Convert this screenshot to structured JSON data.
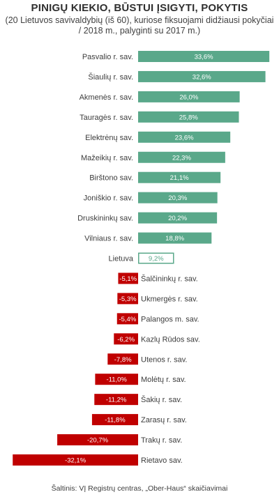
{
  "header": {
    "title": "PINIGŲ KIEKIO, BŪSTUI ĮSIGYTI, POKYTIS",
    "subtitle_line1": "(20 Lietuvos savivaldybių (iš 60), kuriose fiksuojami didžiausi pokyčiai",
    "subtitle_line2": "/ 2018 m., palyginti su 2017 m.)"
  },
  "footer": {
    "source": "Šaltinis: VĮ Registrų centras, „Ober-Haus“ skaičiavimai"
  },
  "chart_data": {
    "type": "bar",
    "orientation": "horizontal",
    "unit": "%",
    "colors": {
      "positive": "#5aa88a",
      "average": "#5aa88a",
      "negative": "#c00000"
    },
    "categories": [
      "Pasvalio r. sav.",
      "Šiaulių r. sav.",
      "Akmenės r. sav.",
      "Tauragės r. sav.",
      "Elektrėnų sav.",
      "Mažeikių r. sav.",
      "Birštono sav.",
      "Joniškio r. sav.",
      "Druskininkų sav.",
      "Vilniaus r. sav.",
      "Lietuva",
      "Šalčininkų r. sav.",
      "Ukmergės r. sav.",
      "Palangos m. sav.",
      "Kazlų Rūdos sav.",
      "Utenos r. sav.",
      "Molėtų r. sav.",
      "Šakių r. sav.",
      "Zarasų r. sav.",
      "Trakų r. sav.",
      "Rietavo sav."
    ],
    "values": [
      33.6,
      32.6,
      26.0,
      25.8,
      23.6,
      22.3,
      21.1,
      20.3,
      20.2,
      18.8,
      9.2,
      -5.1,
      -5.3,
      -5.4,
      -6.2,
      -7.8,
      -11.0,
      -11.2,
      -11.8,
      -20.7,
      -32.1
    ],
    "value_labels": [
      "33,6%",
      "32,6%",
      "26,0%",
      "25,8%",
      "23,6%",
      "22,3%",
      "21,1%",
      "20,3%",
      "20,2%",
      "18,8%",
      "9,2%",
      "-5,1%",
      "-5,3%",
      "-5,4%",
      "-6,2%",
      "-7,8%",
      "-11,0%",
      "-11,2%",
      "-11,8%",
      "-20,7%",
      "-32,1%"
    ],
    "highlight": "Lietuva"
  }
}
